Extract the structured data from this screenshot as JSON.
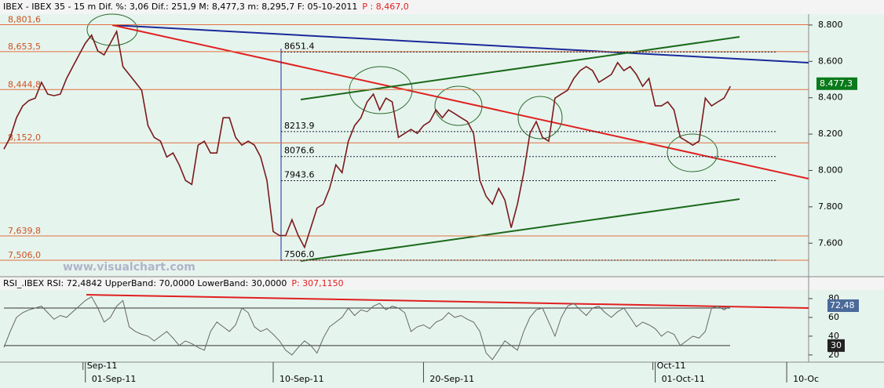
{
  "chart_data": [
    {
      "type": "line",
      "title": "IBEX - IBEX 35 - 15 m Dif. %: 3,06 Dif.: 251,9 M: 8,477,3 m: 8,295,7 F: 05-10-2011",
      "title_extra": "P : 8,467,0",
      "watermark": "www.visualchart.com",
      "xlim": [
        0,
        128.5
      ],
      "ylim": [
        7420,
        8860
      ],
      "yticks": [
        {
          "value": 8800,
          "label": "8.800"
        },
        {
          "value": 8600,
          "label": "8.600"
        },
        {
          "value": 8400,
          "label": "8.400"
        },
        {
          "value": 8200,
          "label": "8.200"
        },
        {
          "value": 8000,
          "label": "8.000"
        },
        {
          "value": 7800,
          "label": "7.800"
        },
        {
          "value": 7600,
          "label": "7.600"
        }
      ],
      "xticks": [
        {
          "value": 13,
          "label": "01-Sep-11"
        },
        {
          "value": 43,
          "label": "10-Sep-11"
        },
        {
          "value": 67,
          "label": "20-Sep-11"
        },
        {
          "value": 104,
          "label": "01-Oct-11"
        },
        {
          "value": 125,
          "label": "10-Oc"
        }
      ],
      "month_labels": [
        {
          "value": 13,
          "label": "Sep-11"
        },
        {
          "value": 104,
          "label": "Oct-11"
        }
      ],
      "levels": [
        {
          "value": 8801.6,
          "label": "8,801,6"
        },
        {
          "value": 8653.5,
          "label": "8,653,5"
        },
        {
          "value": 8444.8,
          "label": "8,444,8"
        },
        {
          "value": 8152,
          "label": "8,152,0"
        },
        {
          "value": 7639.8,
          "label": "7,639,8"
        },
        {
          "value": 7506,
          "label": "7,506,0"
        }
      ],
      "retracement": [
        8651.4,
        8213.9,
        8076.6,
        7943.6,
        {
          "value": 7506,
          "label": "7506.0"
        }
      ],
      "last_value": {
        "value": 8477.3,
        "label": "8.477,3"
      },
      "series": [
        {
          "color": "#7a1a1a",
          "values": [
            8117,
            8182,
            8290,
            8355,
            8385,
            8398,
            8485,
            8420,
            8411,
            8420,
            8506,
            8571,
            8636,
            8700,
            8744,
            8657,
            8636,
            8700,
            8765,
            8571,
            8528,
            8485,
            8441,
            8247,
            8182,
            8161,
            8074,
            8096,
            8031,
            7945,
            7923,
            8139,
            8161,
            8096,
            8096,
            8290,
            8290,
            8182,
            8139,
            8161,
            8139,
            8074,
            7945,
            7664,
            7642,
            7642,
            7729,
            7642,
            7577,
            7685,
            7793,
            7815,
            7901,
            8031,
            7988,
            8161,
            8247,
            8290,
            8377,
            8420,
            8333,
            8398,
            8377,
            8182,
            8204,
            8226,
            8204,
            8247,
            8269,
            8333,
            8290,
            8333,
            8312,
            8290,
            8269,
            8204,
            7945,
            7858,
            7815,
            7901,
            7837,
            7685,
            7815,
            7988,
            8204,
            8269,
            8182,
            8161,
            8398,
            8420,
            8441,
            8506,
            8549,
            8571,
            8549,
            8485,
            8506,
            8528,
            8593,
            8549,
            8571,
            8528,
            8463,
            8506,
            8355,
            8355,
            8377,
            8333,
            8182,
            8161,
            8139,
            8161,
            8398,
            8355,
            8377,
            8398,
            8463
          ]
        }
      ]
    },
    {
      "type": "line",
      "title": "RSI_.IBEX RSI: 72,4842 UpperBand: 70,0000 LowerBand: 30,0000",
      "title_extra": "P: 307,1150",
      "xlim": [
        0,
        128.5
      ],
      "ylim": [
        14,
        87.5
      ],
      "yticks": [
        80,
        60,
        40,
        20
      ],
      "bands": [
        70,
        30
      ],
      "last_value": {
        "value": 72.48,
        "label": "72,48"
      },
      "band_label": 30,
      "series": [
        {
          "color": "#666666",
          "values": [
            28,
            45,
            60,
            65,
            68,
            70,
            72,
            65,
            58,
            62,
            60,
            66,
            72,
            78,
            82,
            70,
            55,
            60,
            72,
            78,
            50,
            45,
            42,
            40,
            35,
            40,
            45,
            38,
            30,
            35,
            32,
            28,
            25,
            45,
            55,
            50,
            45,
            52,
            70,
            65,
            50,
            45,
            48,
            42,
            35,
            25,
            20,
            28,
            35,
            30,
            22,
            38,
            50,
            55,
            60,
            70,
            62,
            68,
            66,
            72,
            75,
            68,
            72,
            70,
            65,
            45,
            50,
            52,
            48,
            55,
            58,
            65,
            60,
            62,
            58,
            55,
            45,
            22,
            15,
            25,
            35,
            30,
            25,
            45,
            60,
            68,
            70,
            55,
            40,
            60,
            72,
            75,
            68,
            62,
            70,
            72,
            65,
            60,
            66,
            70,
            60,
            50,
            55,
            52,
            48,
            40,
            45,
            42,
            30,
            35,
            40,
            38,
            45,
            70,
            72,
            68,
            72
          ]
        }
      ]
    }
  ]
}
